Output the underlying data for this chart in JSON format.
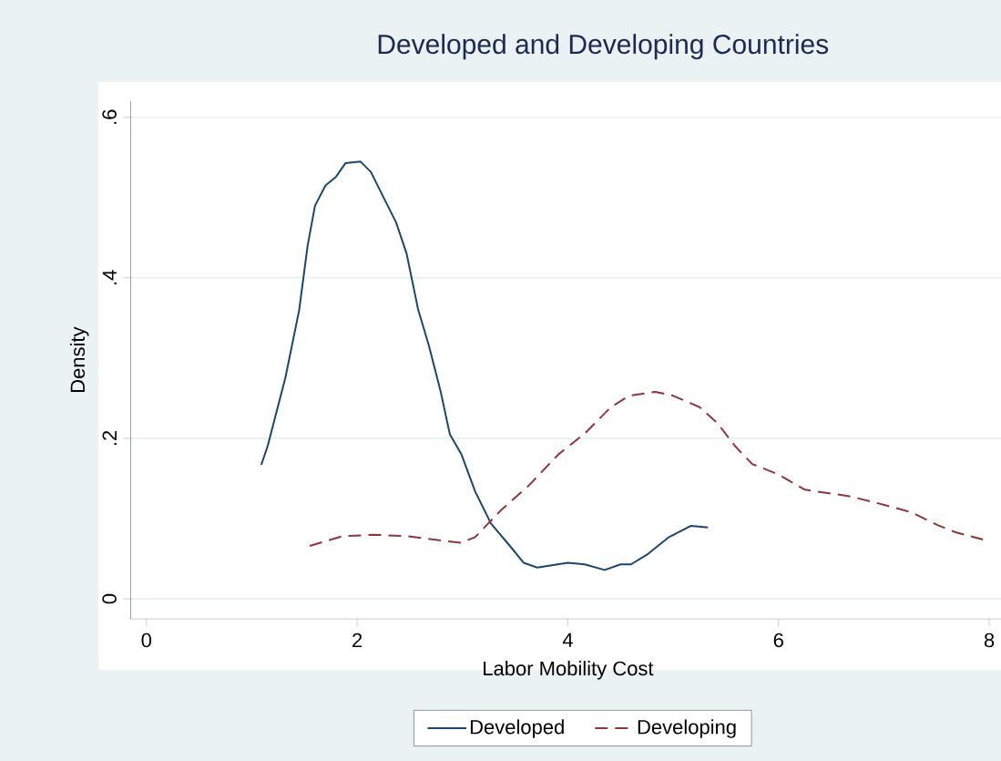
{
  "chart_data": {
    "type": "line",
    "title": "Developed and Developing Countries",
    "xlabel": "Labor Mobility Cost",
    "ylabel": "Density",
    "xlim": [
      -0.15,
      8.15
    ],
    "ylim": [
      -0.025,
      0.62
    ],
    "xticks": [
      0,
      2,
      4,
      6,
      8
    ],
    "yticks": [
      {
        "value": 0,
        "label": "0"
      },
      {
        "value": 0.2,
        "label": ".2"
      },
      {
        "value": 0.4,
        "label": ".4"
      },
      {
        "value": 0.6,
        "label": ".6"
      }
    ],
    "grid": "y",
    "legend": "bottom",
    "marker": "none",
    "series": [
      {
        "name": "Developed",
        "color": "#1a476f",
        "line_style": "solid",
        "x": [
          1.09,
          1.15,
          1.32,
          1.45,
          1.53,
          1.6,
          1.7,
          1.8,
          1.89,
          2.03,
          2.13,
          2.24,
          2.37,
          2.47,
          2.58,
          2.68,
          2.79,
          2.88,
          2.99,
          3.12,
          3.27,
          3.45,
          3.58,
          3.71,
          4.0,
          4.16,
          4.35,
          4.5,
          4.6,
          4.75,
          4.96,
          5.17,
          5.33
        ],
        "values": [
          0.167,
          0.19,
          0.276,
          0.36,
          0.44,
          0.49,
          0.515,
          0.526,
          0.543,
          0.545,
          0.532,
          0.503,
          0.469,
          0.43,
          0.36,
          0.316,
          0.26,
          0.205,
          0.18,
          0.134,
          0.094,
          0.066,
          0.045,
          0.039,
          0.045,
          0.043,
          0.036,
          0.043,
          0.043,
          0.055,
          0.077,
          0.091,
          0.089
        ]
      },
      {
        "name": "Developing",
        "color": "#90353b",
        "line_style": "dashed",
        "x": [
          1.55,
          1.86,
          2.16,
          2.49,
          2.78,
          2.99,
          3.12,
          3.37,
          3.62,
          3.91,
          4.16,
          4.41,
          4.58,
          4.83,
          5.0,
          5.25,
          5.42,
          5.59,
          5.75,
          6.0,
          6.25,
          6.67,
          6.92,
          7.26,
          7.51,
          7.68,
          7.94
        ],
        "values": [
          0.066,
          0.078,
          0.08,
          0.078,
          0.073,
          0.07,
          0.077,
          0.111,
          0.14,
          0.18,
          0.206,
          0.239,
          0.253,
          0.258,
          0.253,
          0.239,
          0.219,
          0.19,
          0.168,
          0.155,
          0.136,
          0.128,
          0.12,
          0.108,
          0.092,
          0.083,
          0.074
        ]
      }
    ]
  }
}
